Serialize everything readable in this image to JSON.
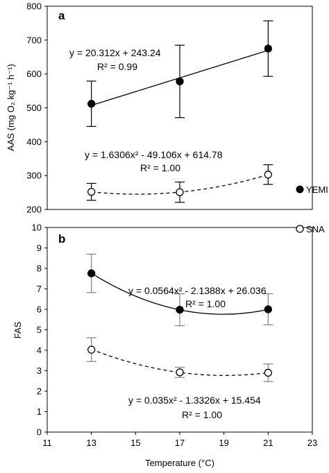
{
  "chart_data": [
    {
      "type": "scatter",
      "panel_label": "a",
      "ylabel": "AAS (mg O₂ kg⁻¹ h⁻¹)",
      "ylim": [
        200,
        800
      ],
      "yticks": [
        "200",
        "300",
        "400",
        "500",
        "600",
        "700",
        "800"
      ],
      "xlim": [
        11,
        23
      ],
      "series": [
        {
          "name": "YEMI",
          "marker": "filled",
          "x": [
            13,
            17,
            21
          ],
          "y": [
            512,
            578,
            675
          ],
          "err": [
            67,
            107,
            82
          ],
          "fit": {
            "kind": "linear",
            "coef": [
              243.24,
              20.312
            ],
            "style": "solid"
          },
          "equation": "y = 20.312x + 243.24",
          "r2": "R² = 0.99"
        },
        {
          "name": "SNA",
          "marker": "open",
          "x": [
            13,
            17,
            21
          ],
          "y": [
            252,
            251,
            303
          ],
          "err": [
            25,
            30,
            29
          ],
          "fit": {
            "kind": "quadratic",
            "coef": [
              614.78,
              -49.106,
              1.6306
            ],
            "style": "dashed"
          },
          "equation": "y = 1.6306x² - 49.106x + 614.78",
          "r2": "R² = 1.00"
        }
      ]
    },
    {
      "type": "scatter",
      "panel_label": "b",
      "ylabel": "FAS",
      "xlabel": "Temperature (°C)",
      "ylim": [
        0,
        10
      ],
      "yticks": [
        "0",
        "1",
        "2",
        "3",
        "4",
        "5",
        "6",
        "7",
        "8",
        "9",
        "10"
      ],
      "xlim": [
        11,
        23
      ],
      "xticks": [
        "11",
        "13",
        "15",
        "17",
        "19",
        "21",
        "23"
      ],
      "series": [
        {
          "name": "YEMI",
          "marker": "filled",
          "x": [
            13,
            17,
            21
          ],
          "y": [
            7.76,
            5.98,
            6.0
          ],
          "err": [
            0.94,
            0.78,
            0.76
          ],
          "fit": {
            "kind": "quadratic",
            "coef": [
              26.036,
              -2.1388,
              0.0564
            ],
            "style": "solid"
          },
          "equation": "y = 0.0564x² - 2.1388x + 26.036",
          "r2": "R² = 1.00"
        },
        {
          "name": "SNA",
          "marker": "open",
          "x": [
            13,
            17,
            21
          ],
          "y": [
            4.03,
            2.92,
            2.9
          ],
          "err": [
            0.58,
            0.25,
            0.43
          ],
          "fit": {
            "kind": "quadratic",
            "coef": [
              15.454,
              -1.3326,
              0.035
            ],
            "style": "dashed"
          },
          "equation": "y = 0.035x² - 1.3326x + 15.454",
          "r2": "R² = 1.00"
        }
      ]
    }
  ],
  "legend": [
    {
      "label": "YEMI",
      "marker": "filled"
    },
    {
      "label": "SNA",
      "marker": "open"
    }
  ]
}
